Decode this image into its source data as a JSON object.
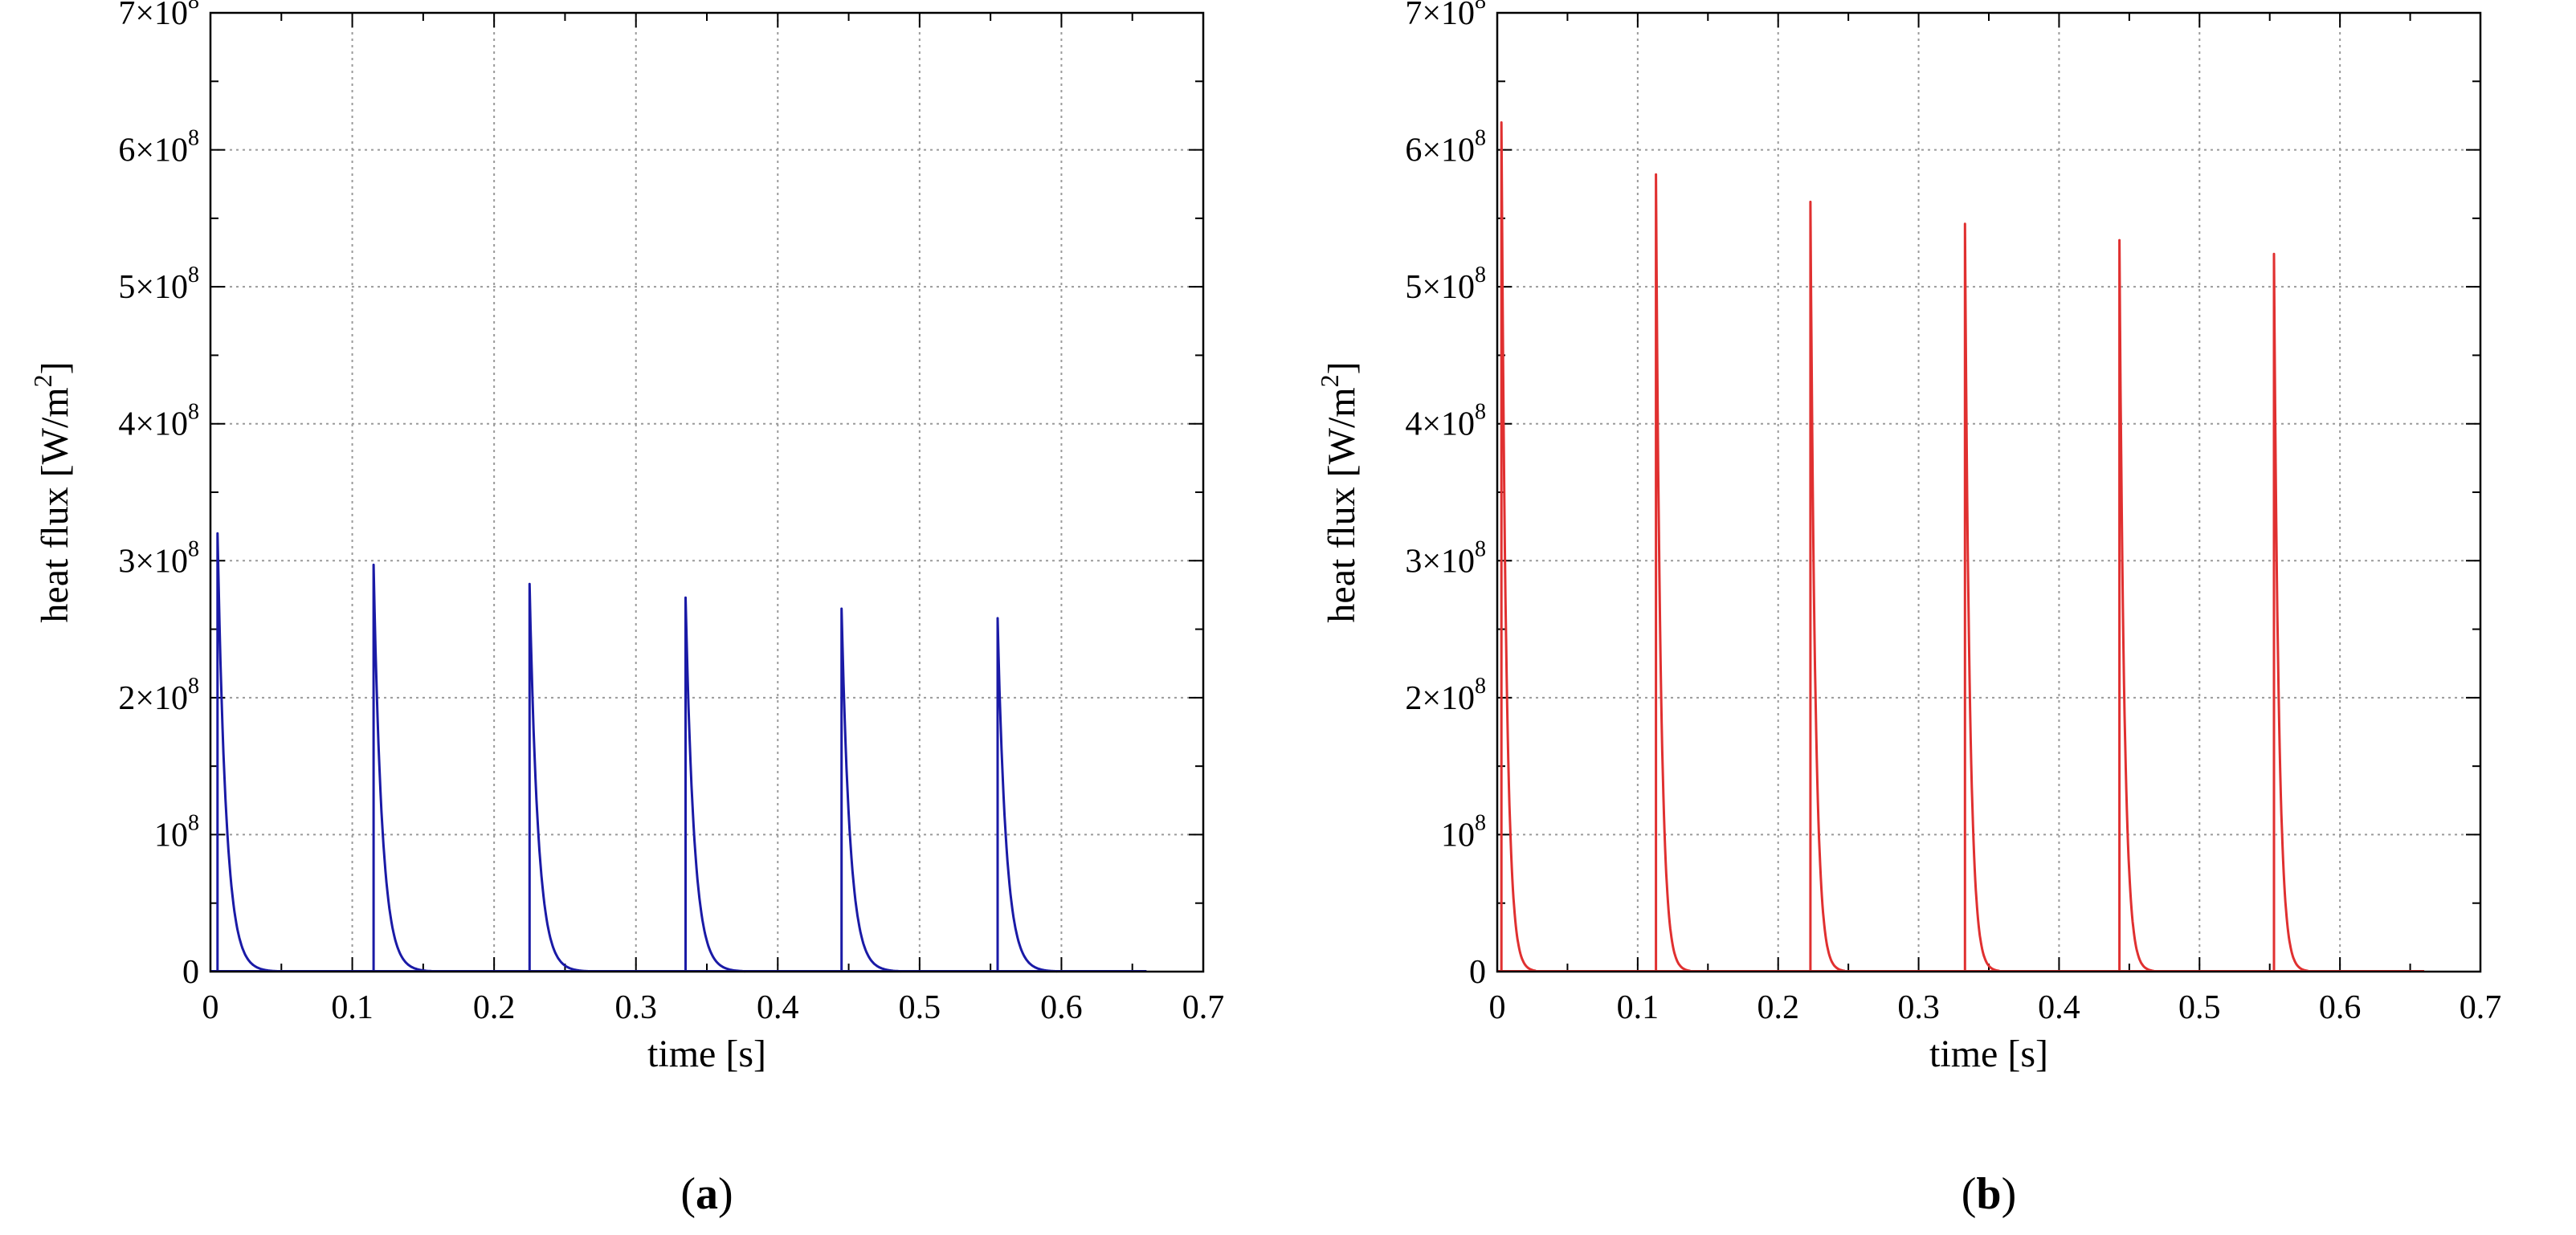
{
  "panels": [
    {
      "label_open": "(",
      "label_letter": "a",
      "label_close": ")",
      "chart_data": {
        "type": "line",
        "xlabel": "time [s]",
        "ylabel_main": "heat flux [W/m",
        "ylabel_sup": "2",
        "ylabel_end": "]",
        "xlim": [
          0,
          0.7
        ],
        "ylim": [
          0,
          700000000
        ],
        "grid": true,
        "x_ticks": [
          0,
          0.1,
          0.2,
          0.3,
          0.4,
          0.5,
          0.6,
          0.7
        ],
        "x_tick_labels": [
          "0",
          "0.1",
          "0.2",
          "0.3",
          "0.4",
          "0.5",
          "0.6",
          "0.7"
        ],
        "y_ticks": [
          {
            "value": 0,
            "label": "0",
            "sup": ""
          },
          {
            "value": 100000000,
            "label": "10",
            "sup": "8"
          },
          {
            "value": 200000000,
            "label": "2×10",
            "sup": "8"
          },
          {
            "value": 300000000,
            "label": "3×10",
            "sup": "8"
          },
          {
            "value": 400000000,
            "label": "4×10",
            "sup": "8"
          },
          {
            "value": 500000000,
            "label": "5×10",
            "sup": "8"
          },
          {
            "value": 600000000,
            "label": "6×10",
            "sup": "8"
          },
          {
            "value": 700000000,
            "label": "7×10",
            "sup": "8"
          }
        ],
        "series": [
          {
            "name": "heat flux",
            "color": "#1a1aa6",
            "pulse_times": [
              0.005,
              0.115,
              0.225,
              0.335,
              0.445,
              0.555
            ],
            "peak_values": [
              320000000,
              297000000,
              283000000,
              273000000,
              265000000,
              258000000
            ],
            "decay_time_s": 0.006
          }
        ]
      }
    },
    {
      "label_open": "(",
      "label_letter": "b",
      "label_close": ")",
      "chart_data": {
        "type": "line",
        "xlabel": "time [s]",
        "ylabel_main": "heat flux [W/m",
        "ylabel_sup": "2",
        "ylabel_end": "]",
        "xlim": [
          0,
          0.7
        ],
        "ylim": [
          0,
          700000000
        ],
        "grid": true,
        "x_ticks": [
          0,
          0.1,
          0.2,
          0.3,
          0.4,
          0.5,
          0.6,
          0.7
        ],
        "x_tick_labels": [
          "0",
          "0.1",
          "0.2",
          "0.3",
          "0.4",
          "0.5",
          "0.6",
          "0.7"
        ],
        "y_ticks": [
          {
            "value": 0,
            "label": "0",
            "sup": ""
          },
          {
            "value": 100000000,
            "label": "10",
            "sup": "8"
          },
          {
            "value": 200000000,
            "label": "2×10",
            "sup": "8"
          },
          {
            "value": 300000000,
            "label": "3×10",
            "sup": "8"
          },
          {
            "value": 400000000,
            "label": "4×10",
            "sup": "8"
          },
          {
            "value": 500000000,
            "label": "5×10",
            "sup": "8"
          },
          {
            "value": 600000000,
            "label": "6×10",
            "sup": "8"
          },
          {
            "value": 700000000,
            "label": "7×10",
            "sup": "8"
          }
        ],
        "series": [
          {
            "name": "heat flux",
            "color": "#e03030",
            "pulse_times": [
              0.003,
              0.113,
              0.223,
              0.333,
              0.443,
              0.553
            ],
            "peak_values": [
              620000000,
              582000000,
              562000000,
              546000000,
              534000000,
              524000000
            ],
            "decay_time_s": 0.0035
          }
        ]
      }
    }
  ]
}
